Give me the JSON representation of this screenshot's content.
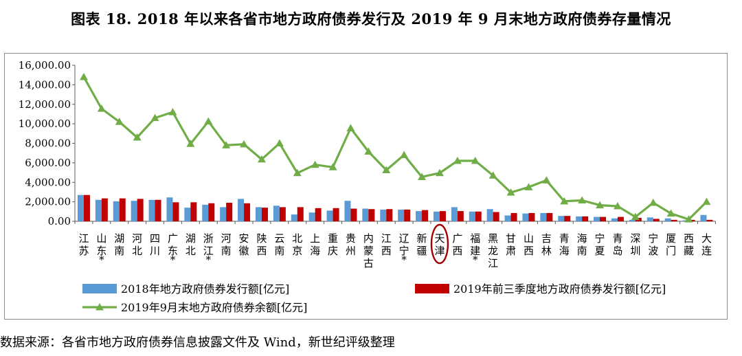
{
  "title": "图表 18. 2018 年以来各省市地方政府债券发行及 2019 年 9 月末地方政府债券存量情况",
  "source": "数据来源：各省市地方政府债券信息披露文件及 Wind，新世纪评级整理",
  "colors": {
    "bar2018": "#5b9bd5",
    "bar2019": "#c00000",
    "line": "#70ad47",
    "circle": "#a00000"
  },
  "chart_data": {
    "type": "bar",
    "categories": [
      "江苏",
      "山东*",
      "湖南",
      "河北",
      "四川",
      "广东*",
      "湖北",
      "浙江*",
      "河南",
      "安徽",
      "陕西",
      "云南",
      "北京",
      "上海",
      "重庆",
      "贵州",
      "内蒙古",
      "江西",
      "辽宁*",
      "新疆",
      "天津",
      "广西",
      "福建*",
      "黑龙江",
      "甘肃",
      "山西",
      "吉林",
      "青海",
      "海南",
      "宁夏",
      "青岛",
      "深圳",
      "宁波",
      "厦门",
      "西藏",
      "大连"
    ],
    "category_labels": [
      "江苏",
      "山东",
      "湖南",
      "河北",
      "四川",
      "广东",
      "湖北",
      "浙江",
      "河南",
      "安徽",
      "陕西",
      "云南",
      "北京",
      "上海",
      "重庆",
      "贵州",
      "内蒙古",
      "江西",
      "辽宁",
      "新疆",
      "天津",
      "广西",
      "福建",
      "黑龙江",
      "甘肃",
      "山西",
      "吉林",
      "青海",
      "海南",
      "宁夏",
      "青岛",
      "深圳",
      "宁波",
      "厦门",
      "西藏",
      "大连"
    ],
    "category_marks": [
      "",
      "*",
      "",
      "",
      "",
      "*",
      "",
      "*",
      "",
      "",
      "",
      "",
      "",
      "",
      "",
      "",
      "",
      "",
      "*",
      "",
      "",
      "",
      "*",
      "",
      "",
      "",
      "",
      "",
      "",
      "",
      "",
      "",
      "",
      "",
      "",
      ""
    ],
    "highlight_category": "天津",
    "series": [
      {
        "name": "2018年地方政府债券发行额[亿元]",
        "type": "bar",
        "values": [
          2700,
          2200,
          2050,
          2100,
          2200,
          2450,
          1400,
          1700,
          1450,
          2300,
          1450,
          1600,
          700,
          900,
          1100,
          2100,
          1300,
          1200,
          1200,
          1050,
          1000,
          1450,
          1000,
          1250,
          600,
          800,
          850,
          550,
          500,
          450,
          300,
          150,
          400,
          300,
          100,
          650
        ]
      },
      {
        "name": "2019年前三季度地方政府债券发行额[亿元]",
        "type": "bar",
        "values": [
          2700,
          2350,
          2350,
          2300,
          2200,
          1950,
          1950,
          1850,
          1900,
          1850,
          1400,
          1450,
          1450,
          1350,
          1350,
          1300,
          1250,
          1250,
          1200,
          1150,
          1050,
          1050,
          1000,
          950,
          850,
          850,
          850,
          550,
          500,
          450,
          450,
          350,
          250,
          150,
          150,
          150
        ]
      },
      {
        "name": "2019年9月末地方政府债券余额[亿元]",
        "type": "line",
        "values": [
          14800,
          11550,
          10200,
          8600,
          10600,
          11200,
          7950,
          10250,
          7800,
          7900,
          6350,
          8000,
          4950,
          5800,
          5550,
          9550,
          7150,
          5250,
          6800,
          4550,
          4950,
          6200,
          6200,
          4700,
          2950,
          3500,
          4200,
          2050,
          2150,
          1650,
          1550,
          450,
          1900,
          800,
          200,
          2000
        ]
      }
    ],
    "yticks": [
      "16,000.00",
      "14,000.00",
      "12,000.00",
      "10,000.00",
      "8,000.00",
      "6,000.00",
      "4,000.00",
      "2,000.00",
      "0.00"
    ],
    "ylim": [
      0,
      16000
    ],
    "legend_position": "bottom",
    "grid": false
  }
}
